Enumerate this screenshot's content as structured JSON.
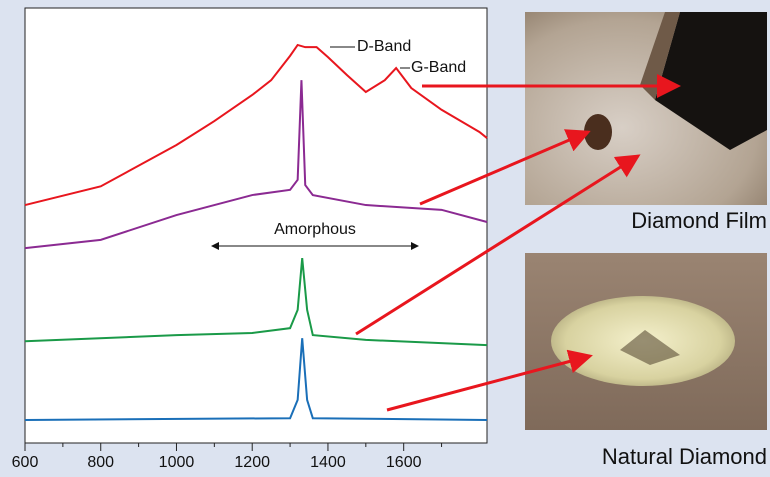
{
  "chart_data": {
    "type": "line",
    "xlim": [
      600,
      1820
    ],
    "xticks": [
      600,
      800,
      1000,
      1200,
      1400,
      1600
    ],
    "xminorticks": [
      700,
      900,
      1100,
      1300,
      1500,
      1700
    ],
    "ylim": [
      0,
      100
    ],
    "series": [
      {
        "color": "#e8161e",
        "x": [
          600,
          800,
          1000,
          1100,
          1200,
          1250,
          1300,
          1320,
          1340,
          1370,
          1400,
          1450,
          1500,
          1550,
          1580,
          1620,
          1700,
          1800,
          1820
        ],
        "values": [
          54.7,
          59,
          68.5,
          74,
          80,
          83.4,
          89,
          91.5,
          91,
          91,
          88.7,
          84.6,
          80.7,
          83.4,
          86.2,
          81.6,
          76.6,
          71.5,
          70.1
        ]
      },
      {
        "color": "#8b2a92",
        "x": [
          600,
          800,
          1000,
          1200,
          1300,
          1320,
          1330,
          1340,
          1360,
          1500,
          1700,
          1820
        ],
        "values": [
          44.8,
          46.7,
          52.4,
          57,
          58.2,
          60.5,
          83.4,
          59.3,
          57,
          54.7,
          53.6,
          50.8
        ]
      },
      {
        "color": "#1a9a48",
        "x": [
          600,
          1000,
          1200,
          1300,
          1320,
          1332,
          1345,
          1360,
          1500,
          1820
        ],
        "values": [
          23.4,
          24.8,
          25.3,
          26.4,
          30.6,
          42.5,
          30.6,
          24.8,
          23.7,
          22.5
        ]
      },
      {
        "color": "#1a6fb8",
        "x": [
          600,
          1300,
          1320,
          1332,
          1345,
          1360,
          1820
        ],
        "values": [
          5.3,
          5.7,
          9.9,
          24.1,
          9.9,
          5.7,
          5.3
        ]
      }
    ],
    "annotations": {
      "d_band": "D-Band",
      "g_band": "G-Band",
      "amorphous": "Amorphous"
    },
    "images": {
      "film_caption": "Diamond Film",
      "natural_caption": "Natural Diamond"
    }
  }
}
